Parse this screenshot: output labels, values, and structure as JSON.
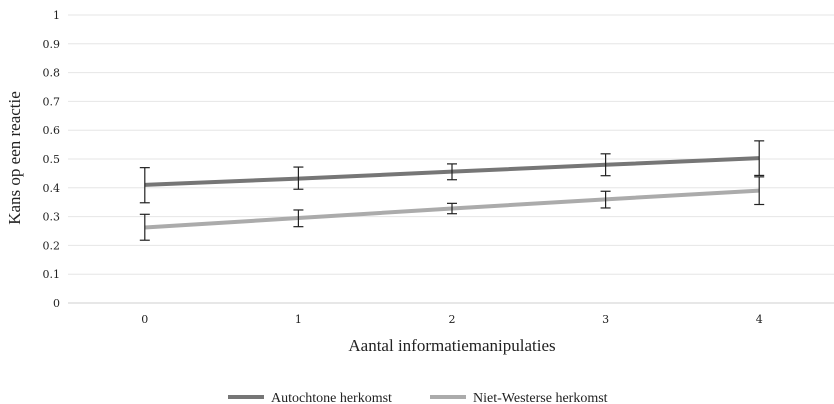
{
  "chart_data": {
    "type": "line",
    "title": "",
    "xlabel": "Aantal informatiemanipulaties",
    "ylabel": "Kans op een reactie",
    "categories": [
      "0",
      "1",
      "2",
      "3",
      "4"
    ],
    "ylim": [
      0,
      1
    ],
    "yticks": [
      "0",
      "0.1",
      "0.2",
      "0.3",
      "0.4",
      "0.5",
      "0.6",
      "0.7",
      "0.8",
      "0.9",
      "1"
    ],
    "grid": true,
    "legend_position": "bottom",
    "series": [
      {
        "name": "Autochtone herkomst",
        "color": "#767676",
        "values": [
          0.41,
          0.432,
          0.456,
          0.48,
          0.503
        ],
        "error_low": [
          0.348,
          0.395,
          0.428,
          0.442,
          0.443
        ],
        "error_high": [
          0.47,
          0.472,
          0.483,
          0.518,
          0.563
        ]
      },
      {
        "name": "Niet-Westerse herkomst",
        "color": "#ababab",
        "values": [
          0.262,
          0.295,
          0.328,
          0.36,
          0.39
        ],
        "error_low": [
          0.218,
          0.265,
          0.31,
          0.33,
          0.342
        ],
        "error_high": [
          0.308,
          0.323,
          0.346,
          0.388,
          0.438
        ]
      }
    ]
  }
}
